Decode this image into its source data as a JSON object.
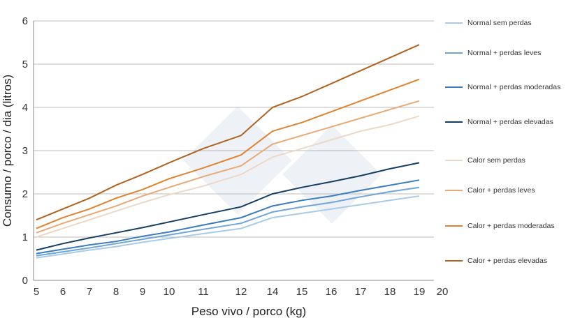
{
  "chart_data": {
    "type": "line",
    "title": "",
    "xlabel": "Peso vivo / porco (kg)",
    "ylabel": "Consumo / porco / dia (litros)",
    "ylim": [
      0,
      6
    ],
    "yticks": [
      "0",
      "1",
      "2",
      "3",
      "4",
      "5",
      "6"
    ],
    "xticks": [
      "5",
      "6",
      "7",
      "8",
      "9",
      "10",
      "11",
      "12",
      "14",
      "15",
      "16",
      "17",
      "18",
      "19",
      "20"
    ],
    "grid": true,
    "legend": "right",
    "x": [
      5,
      6,
      7,
      8,
      9,
      10,
      11,
      12,
      14,
      15,
      16,
      17,
      18,
      19
    ],
    "series": [
      {
        "name": "Normal sem perdas",
        "color": "#a9cbe8",
        "values": [
          0.52,
          0.61,
          0.7,
          0.78,
          0.88,
          0.97,
          1.08,
          1.2,
          1.45,
          1.55,
          1.65,
          1.75,
          1.85,
          1.95
        ]
      },
      {
        "name": "Normal + perdas leves",
        "color": "#6fa5d8",
        "values": [
          0.57,
          0.66,
          0.75,
          0.85,
          0.95,
          1.05,
          1.18,
          1.32,
          1.58,
          1.7,
          1.8,
          1.93,
          2.05,
          2.15
        ]
      },
      {
        "name": "Normal + perdas moderadas",
        "color": "#3a7dbf",
        "values": [
          0.62,
          0.72,
          0.82,
          0.9,
          1.02,
          1.12,
          1.28,
          1.45,
          1.72,
          1.85,
          1.95,
          2.08,
          2.2,
          2.32
        ]
      },
      {
        "name": "Normal + perdas elevadas",
        "color": "#163e63",
        "values": [
          0.7,
          0.85,
          0.98,
          1.1,
          1.22,
          1.35,
          1.52,
          1.7,
          2.0,
          2.15,
          2.28,
          2.42,
          2.58,
          2.72
        ]
      },
      {
        "name": "Calor sem perdas",
        "color": "#ecd8c6",
        "values": [
          1.0,
          1.2,
          1.4,
          1.6,
          1.8,
          1.98,
          2.18,
          2.45,
          2.85,
          3.05,
          3.25,
          3.45,
          3.6,
          3.8
        ]
      },
      {
        "name": "Calor + perdas leves",
        "color": "#e9a974",
        "values": [
          1.1,
          1.32,
          1.52,
          1.72,
          1.95,
          2.15,
          2.4,
          2.65,
          3.15,
          3.35,
          3.55,
          3.75,
          3.95,
          4.15
        ]
      },
      {
        "name": "Calor + perdas moderadas",
        "color": "#e0822f",
        "values": [
          1.2,
          1.45,
          1.65,
          1.9,
          2.1,
          2.35,
          2.6,
          2.9,
          3.45,
          3.65,
          3.9,
          4.15,
          4.4,
          4.65
        ]
      },
      {
        "name": "Calor + perdas elevadas",
        "color": "#b0621f",
        "values": [
          1.4,
          1.65,
          1.9,
          2.2,
          2.45,
          2.72,
          3.05,
          3.35,
          4.0,
          4.25,
          4.55,
          4.85,
          5.15,
          5.45
        ]
      }
    ]
  }
}
